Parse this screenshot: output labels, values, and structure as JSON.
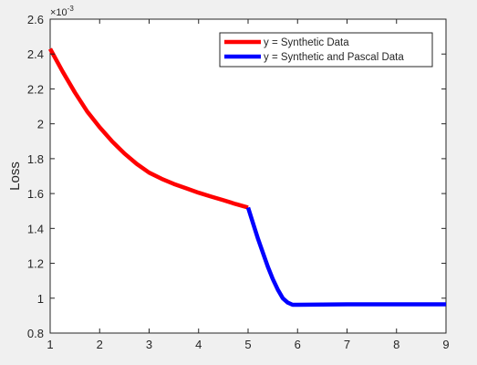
{
  "chart_data": {
    "type": "line",
    "title": "",
    "xlabel": "",
    "ylabel": "Loss",
    "y_exponent_label": "×10",
    "y_exponent_power": "-3",
    "xlim": [
      1,
      9
    ],
    "ylim": [
      0.8,
      2.6
    ],
    "x_ticks": [
      1,
      2,
      3,
      4,
      5,
      6,
      7,
      8,
      9
    ],
    "x_tick_labels": [
      "1",
      "2",
      "3",
      "4",
      "5",
      "6",
      "7",
      "8",
      "9"
    ],
    "y_ticks": [
      0.8,
      1.0,
      1.2,
      1.4,
      1.6,
      1.8,
      2.0,
      2.2,
      2.4,
      2.6
    ],
    "y_tick_labels": [
      "0.8",
      "1",
      "1.2",
      "1.4",
      "1.6",
      "1.8",
      "2",
      "2.2",
      "2.4",
      "2.6"
    ],
    "grid": false,
    "legend_position": "top-right",
    "series": [
      {
        "name": "y = Synthetic Data",
        "color": "#ff0000",
        "x": [
          1.0,
          1.25,
          1.5,
          1.75,
          2.0,
          2.25,
          2.5,
          2.75,
          3.0,
          3.25,
          3.5,
          3.75,
          4.0,
          4.25,
          4.5,
          4.75,
          5.0
        ],
        "y": [
          2.43,
          2.3,
          2.18,
          2.07,
          1.98,
          1.9,
          1.83,
          1.77,
          1.72,
          1.685,
          1.655,
          1.63,
          1.605,
          1.583,
          1.562,
          1.54,
          1.52
        ]
      },
      {
        "name": "y = Synthetic and Pascal Data",
        "color": "#0000ff",
        "x": [
          5.0,
          5.1,
          5.2,
          5.3,
          5.4,
          5.5,
          5.6,
          5.7,
          5.8,
          5.9,
          6.0,
          6.5,
          7.0,
          8.0,
          9.0
        ],
        "y": [
          1.52,
          1.43,
          1.34,
          1.26,
          1.18,
          1.11,
          1.05,
          1.0,
          0.975,
          0.962,
          0.962,
          0.963,
          0.965,
          0.965,
          0.965
        ]
      }
    ]
  }
}
